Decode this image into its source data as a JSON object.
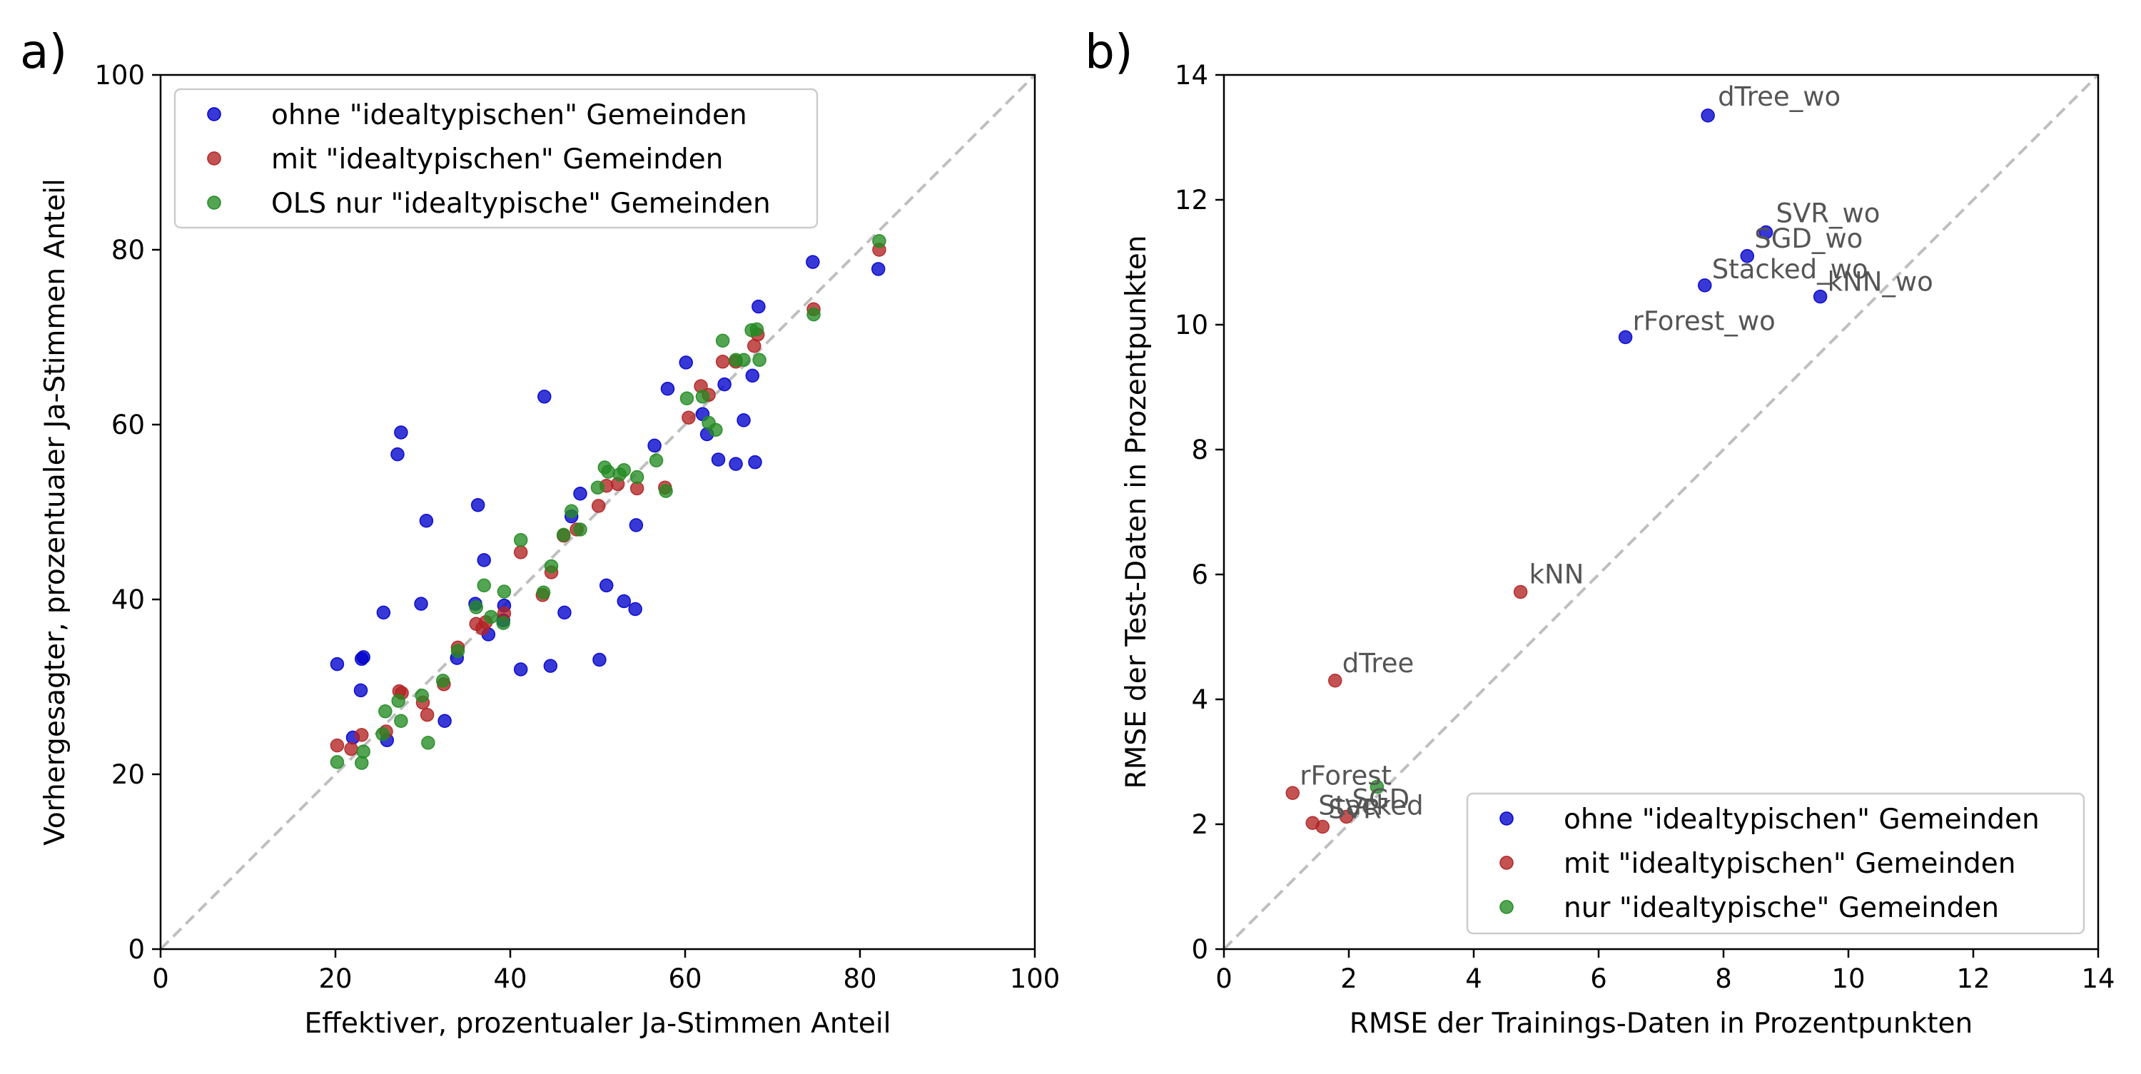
{
  "colors": {
    "ohne": "#0000cc",
    "mit": "#b22222",
    "nur": "#228b22",
    "diagonal": "#bfbfbf",
    "label": "#555555"
  },
  "chart_data": [
    {
      "type": "scatter",
      "panel_label": "a)",
      "xlabel": "Effektiver, prozentualer Ja-Stimmen Anteil",
      "ylabel": "Vorhergesagter, prozentualer Ja-Stimmen Anteil",
      "xlim": [
        0,
        100
      ],
      "ylim": [
        0,
        100
      ],
      "xticks": [
        0,
        20,
        40,
        60,
        80,
        100
      ],
      "yticks": [
        0,
        20,
        40,
        60,
        80,
        100
      ],
      "diagonal": true,
      "grid": false,
      "legend_position": "upper-left",
      "series": [
        {
          "name": "ohne \"idealtypischen\" Gemeinden",
          "color_key": "ohne",
          "points": [
            [
              20.2,
              32.6
            ],
            [
              22.0,
              24.2
            ],
            [
              23.0,
              33.2
            ],
            [
              23.2,
              33.4
            ],
            [
              22.9,
              29.6
            ],
            [
              25.5,
              38.5
            ],
            [
              25.9,
              23.9
            ],
            [
              27.1,
              56.6
            ],
            [
              27.5,
              59.1
            ],
            [
              29.8,
              39.5
            ],
            [
              30.4,
              49.0
            ],
            [
              32.5,
              26.1
            ],
            [
              33.9,
              33.3
            ],
            [
              36.0,
              39.5
            ],
            [
              36.3,
              50.8
            ],
            [
              37.0,
              44.5
            ],
            [
              37.5,
              36.0
            ],
            [
              39.2,
              37.6
            ],
            [
              39.3,
              39.3
            ],
            [
              41.2,
              32.0
            ],
            [
              43.9,
              63.2
            ],
            [
              44.6,
              32.4
            ],
            [
              46.2,
              38.5
            ],
            [
              47.0,
              49.5
            ],
            [
              48.0,
              52.1
            ],
            [
              50.2,
              33.1
            ],
            [
              51.0,
              41.6
            ],
            [
              53.0,
              39.8
            ],
            [
              54.3,
              38.9
            ],
            [
              54.4,
              48.5
            ],
            [
              56.5,
              57.6
            ],
            [
              58.0,
              64.1
            ],
            [
              60.1,
              67.1
            ],
            [
              62.0,
              61.2
            ],
            [
              62.5,
              58.9
            ],
            [
              63.8,
              56.0
            ],
            [
              64.5,
              64.6
            ],
            [
              65.8,
              55.5
            ],
            [
              66.7,
              60.5
            ],
            [
              67.7,
              65.6
            ],
            [
              68.0,
              55.7
            ],
            [
              68.4,
              73.5
            ],
            [
              74.6,
              78.6
            ],
            [
              82.1,
              77.8
            ]
          ]
        },
        {
          "name": "mit \"idealtypischen\" Gemeinden",
          "color_key": "mit",
          "points": [
            [
              20.2,
              23.3
            ],
            [
              21.8,
              22.9
            ],
            [
              23.0,
              24.5
            ],
            [
              25.8,
              24.9
            ],
            [
              27.3,
              29.5
            ],
            [
              27.6,
              29.3
            ],
            [
              30.0,
              28.2
            ],
            [
              30.5,
              26.8
            ],
            [
              32.4,
              30.3
            ],
            [
              34.0,
              34.5
            ],
            [
              36.1,
              37.2
            ],
            [
              36.8,
              36.7
            ],
            [
              37.2,
              37.4
            ],
            [
              39.3,
              38.4
            ],
            [
              41.2,
              45.4
            ],
            [
              43.7,
              40.5
            ],
            [
              44.7,
              43.1
            ],
            [
              46.1,
              47.3
            ],
            [
              47.6,
              48.0
            ],
            [
              50.1,
              50.7
            ],
            [
              51.0,
              53.0
            ],
            [
              52.3,
              53.2
            ],
            [
              54.5,
              52.7
            ],
            [
              57.7,
              52.8
            ],
            [
              60.4,
              60.8
            ],
            [
              61.8,
              64.4
            ],
            [
              62.7,
              63.4
            ],
            [
              64.3,
              67.2
            ],
            [
              65.8,
              67.2
            ],
            [
              67.9,
              69.0
            ],
            [
              68.3,
              70.3
            ],
            [
              74.7,
              73.2
            ],
            [
              82.2,
              80.0
            ]
          ]
        },
        {
          "name": "OLS nur \"idealtypische\" Gemeinden",
          "color_key": "nur",
          "points": [
            [
              20.2,
              21.4
            ],
            [
              23.0,
              21.3
            ],
            [
              23.2,
              22.6
            ],
            [
              25.4,
              24.6
            ],
            [
              25.7,
              27.2
            ],
            [
              27.2,
              28.4
            ],
            [
              27.5,
              26.1
            ],
            [
              29.9,
              29.0
            ],
            [
              30.6,
              23.6
            ],
            [
              32.3,
              30.7
            ],
            [
              34.0,
              34.1
            ],
            [
              36.1,
              39.1
            ],
            [
              37.0,
              41.6
            ],
            [
              37.8,
              38.0
            ],
            [
              39.2,
              37.3
            ],
            [
              39.3,
              40.9
            ],
            [
              41.2,
              46.8
            ],
            [
              43.8,
              40.8
            ],
            [
              44.7,
              43.8
            ],
            [
              46.1,
              47.4
            ],
            [
              47.0,
              50.1
            ],
            [
              48.0,
              48.0
            ],
            [
              50.0,
              52.8
            ],
            [
              50.8,
              55.1
            ],
            [
              51.2,
              54.6
            ],
            [
              52.5,
              54.3
            ],
            [
              53.0,
              54.8
            ],
            [
              54.5,
              54.0
            ],
            [
              56.7,
              55.9
            ],
            [
              57.8,
              52.4
            ],
            [
              60.2,
              63.0
            ],
            [
              62.0,
              63.2
            ],
            [
              62.7,
              60.2
            ],
            [
              63.5,
              59.4
            ],
            [
              64.3,
              69.6
            ],
            [
              65.8,
              67.4
            ],
            [
              66.7,
              67.4
            ],
            [
              67.6,
              70.8
            ],
            [
              68.2,
              70.9
            ],
            [
              68.5,
              67.4
            ],
            [
              74.7,
              72.6
            ],
            [
              82.2,
              81.0
            ]
          ]
        }
      ]
    },
    {
      "type": "scatter",
      "panel_label": "b)",
      "xlabel": "RMSE der Trainings-Daten in Prozentpunkten",
      "ylabel": "RMSE der Test-Daten in Prozentpunkten",
      "xlim": [
        0,
        14
      ],
      "ylim": [
        0,
        14
      ],
      "xticks": [
        0,
        2,
        4,
        6,
        8,
        10,
        12,
        14
      ],
      "yticks": [
        0,
        2,
        4,
        6,
        8,
        10,
        12,
        14
      ],
      "diagonal": true,
      "grid": false,
      "legend_position": "lower-right",
      "series": [
        {
          "name": "ohne \"idealtypischen\" Gemeinden",
          "color_key": "ohne",
          "points": [
            {
              "x": 7.75,
              "y": 13.35,
              "label": "dTree_wo"
            },
            {
              "x": 8.68,
              "y": 11.48,
              "label": "SVR_wo"
            },
            {
              "x": 8.38,
              "y": 11.1,
              "label": "SGD_wo"
            },
            {
              "x": 7.7,
              "y": 10.63,
              "label": "Stacked_wo"
            },
            {
              "x": 9.55,
              "y": 10.45,
              "label": "kNN_wo"
            },
            {
              "x": 6.43,
              "y": 9.8,
              "label": "rForest_wo"
            }
          ]
        },
        {
          "name": "mit \"idealtypischen\" Gemeinden",
          "color_key": "mit",
          "points": [
            {
              "x": 4.75,
              "y": 5.72,
              "label": "kNN"
            },
            {
              "x": 1.78,
              "y": 4.3,
              "label": "dTree"
            },
            {
              "x": 1.1,
              "y": 2.5,
              "label": "rForest"
            },
            {
              "x": 1.42,
              "y": 2.02,
              "label": "Stacked"
            },
            {
              "x": 1.58,
              "y": 1.96,
              "label": "SVR"
            },
            {
              "x": 1.96,
              "y": 2.12,
              "label": "SGD"
            }
          ]
        },
        {
          "name": "nur \"idealtypische\" Gemeinden",
          "color_key": "nur",
          "points": [
            {
              "x": 2.45,
              "y": 2.6,
              "label": ""
            }
          ]
        }
      ]
    }
  ]
}
